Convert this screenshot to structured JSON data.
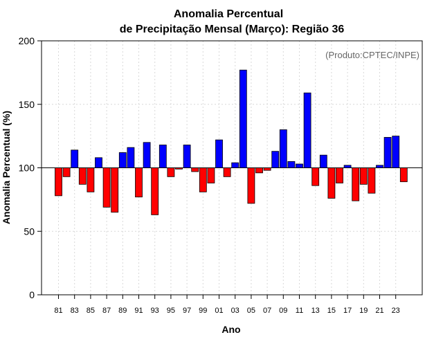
{
  "chart_data": {
    "type": "bar",
    "title_line1": "Anomalia Percentual",
    "title_line2": "de Precipitação Mensal (Março): Região 36",
    "xlabel": "Ano",
    "ylabel": "Anomalia Percentual (%)",
    "credit": "(Produto:CPTEC/INPE)",
    "baseline": 100,
    "ylim": [
      0,
      200
    ],
    "yticks": [
      0,
      50,
      100,
      150,
      200
    ],
    "ytick_labels": [
      "0",
      "50",
      "100",
      "150",
      "200"
    ],
    "grid": true,
    "colors": {
      "above": "#0000ff",
      "below": "#ff0000",
      "border": "#000000"
    },
    "categories": [
      "1981",
      "1982",
      "1983",
      "1984",
      "1985",
      "1986",
      "1987",
      "1988",
      "1989",
      "1990",
      "1991",
      "1992",
      "1993",
      "1994",
      "1995",
      "1996",
      "1997",
      "1998",
      "1999",
      "2000",
      "2001",
      "2002",
      "2003",
      "2004",
      "2005",
      "2006",
      "2007",
      "2008",
      "2009",
      "2010",
      "2011",
      "2012",
      "2013",
      "2014",
      "2015",
      "2016",
      "2017",
      "2018",
      "2019",
      "2020",
      "2021",
      "2022",
      "2023",
      "2024"
    ],
    "values": [
      78,
      93,
      114,
      87,
      81,
      108,
      69,
      65,
      112,
      116,
      77,
      120,
      63,
      118,
      93,
      99,
      118,
      97,
      81,
      88,
      122,
      93,
      104,
      177,
      72,
      96,
      98,
      113,
      130,
      105,
      103,
      159,
      86,
      110,
      76,
      88,
      102,
      74,
      87,
      80,
      102,
      124,
      125,
      89
    ],
    "xtick_labels": [
      "81",
      "83",
      "85",
      "87",
      "89",
      "91",
      "93",
      "95",
      "97",
      "99",
      "01",
      "03",
      "05",
      "07",
      "09",
      "11",
      "13",
      "15",
      "17",
      "19",
      "21",
      "23"
    ],
    "xtick_every": 2
  }
}
